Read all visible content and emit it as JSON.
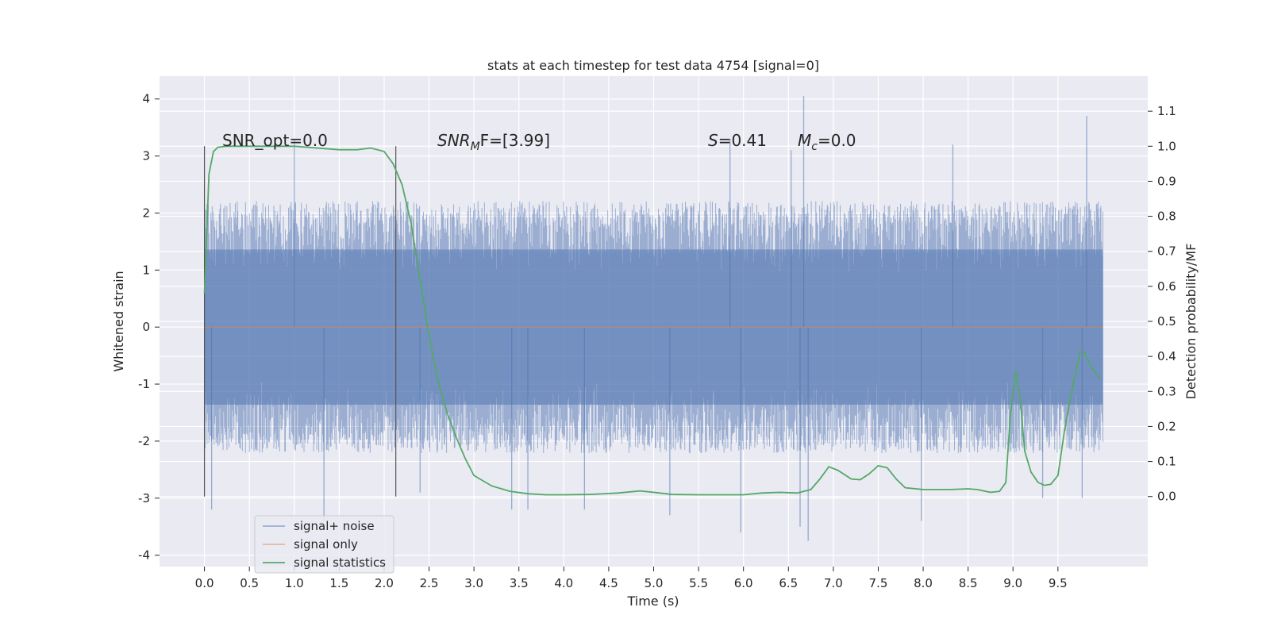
{
  "chart_data": {
    "type": "line",
    "title": "stats at each timestep for test data 4754 [signal=0]",
    "xlabel": "Time (s)",
    "ylabel": "Whitened strain",
    "ylabel_right": "Detection probability/MF",
    "xlim": [
      -0.5,
      10.5
    ],
    "ylim": [
      -4.2,
      4.4
    ],
    "ylim_right": [
      -0.2,
      1.2
    ],
    "x_ticks": [
      "0.0",
      "0.5",
      "1.0",
      "1.5",
      "2.0",
      "2.5",
      "3.0",
      "3.5",
      "4.0",
      "4.5",
      "5.0",
      "5.5",
      "6.0",
      "6.5",
      "7.0",
      "7.5",
      "8.0",
      "8.5",
      "9.0",
      "9.5"
    ],
    "y_ticks": [
      "-4",
      "-3",
      "-2",
      "-1",
      "0",
      "1",
      "2",
      "3",
      "4"
    ],
    "y_ticks_right": [
      "0.0",
      "0.1",
      "0.2",
      "0.3",
      "0.4",
      "0.5",
      "0.6",
      "0.7",
      "0.8",
      "0.9",
      "1.0",
      "1.1"
    ],
    "grid": true,
    "legend_placement": "lower-left",
    "annotations": {
      "snr_opt": "SNR_opt=0.0",
      "snr_mf_base": "SNR",
      "snr_mf_sub": "M",
      "snr_mf_rest": "F=[3.99]",
      "s_label": "S",
      "s_rest": "=0.41",
      "mc_base": "M",
      "mc_sub": "c",
      "mc_rest": "=0.0"
    },
    "vertical_markers": [
      0.0,
      2.13
    ],
    "series": [
      {
        "name": "signal+ noise",
        "color": "#4c72b0",
        "kind": "noise",
        "axis": "left",
        "x_range": [
          0.0,
          10.0
        ],
        "typical_range": [
          -1.7,
          1.7
        ],
        "extremes": [
          {
            "x": 0.08,
            "y": -3.2
          },
          {
            "x": 1.0,
            "y": 3.3
          },
          {
            "x": 1.33,
            "y": -3.4
          },
          {
            "x": 2.4,
            "y": -2.9
          },
          {
            "x": 3.42,
            "y": -3.2
          },
          {
            "x": 3.6,
            "y": -3.2
          },
          {
            "x": 4.23,
            "y": -3.2
          },
          {
            "x": 5.18,
            "y": -3.3
          },
          {
            "x": 5.85,
            "y": 3.3
          },
          {
            "x": 5.97,
            "y": -3.6
          },
          {
            "x": 6.53,
            "y": 3.1
          },
          {
            "x": 6.63,
            "y": -3.5
          },
          {
            "x": 6.67,
            "y": 4.05
          },
          {
            "x": 6.72,
            "y": -3.75
          },
          {
            "x": 7.98,
            "y": -3.4
          },
          {
            "x": 8.33,
            "y": 3.2
          },
          {
            "x": 9.33,
            "y": -3.0
          },
          {
            "x": 9.77,
            "y": -3.0
          },
          {
            "x": 9.82,
            "y": 3.7
          }
        ]
      },
      {
        "name": "signal only",
        "color": "#dd8452",
        "kind": "line",
        "axis": "left",
        "x": [
          0.0,
          10.0
        ],
        "y": [
          0.0,
          0.0
        ]
      },
      {
        "name": "signal statistics",
        "color": "#55a868",
        "kind": "line",
        "axis": "right",
        "x": [
          0.0,
          0.05,
          0.1,
          0.15,
          0.25,
          0.5,
          1.0,
          1.5,
          1.7,
          1.85,
          2.0,
          2.1,
          2.2,
          2.3,
          2.4,
          2.5,
          2.6,
          2.7,
          2.8,
          2.9,
          3.0,
          3.2,
          3.4,
          3.6,
          3.8,
          4.0,
          4.3,
          4.6,
          4.85,
          5.0,
          5.2,
          5.5,
          5.8,
          6.0,
          6.2,
          6.4,
          6.6,
          6.75,
          6.85,
          6.95,
          7.05,
          7.2,
          7.3,
          7.4,
          7.5,
          7.6,
          7.7,
          7.8,
          8.0,
          8.3,
          8.5,
          8.6,
          8.75,
          8.85,
          8.92,
          8.97,
          9.03,
          9.08,
          9.13,
          9.2,
          9.28,
          9.35,
          9.42,
          9.5,
          9.58,
          9.67,
          9.75,
          9.8,
          9.85,
          9.9,
          9.97
        ],
        "y": [
          0.58,
          0.92,
          0.985,
          0.997,
          1.0,
          1.0,
          1.0,
          0.99,
          0.99,
          0.995,
          0.985,
          0.95,
          0.89,
          0.78,
          0.62,
          0.46,
          0.33,
          0.24,
          0.17,
          0.11,
          0.06,
          0.03,
          0.015,
          0.008,
          0.005,
          0.005,
          0.006,
          0.01,
          0.016,
          0.012,
          0.006,
          0.005,
          0.005,
          0.005,
          0.01,
          0.012,
          0.01,
          0.02,
          0.05,
          0.085,
          0.075,
          0.05,
          0.048,
          0.065,
          0.088,
          0.082,
          0.05,
          0.025,
          0.02,
          0.02,
          0.022,
          0.02,
          0.012,
          0.015,
          0.04,
          0.23,
          0.36,
          0.28,
          0.13,
          0.07,
          0.04,
          0.032,
          0.035,
          0.06,
          0.2,
          0.32,
          0.415,
          0.41,
          0.38,
          0.36,
          0.335
        ]
      }
    ]
  }
}
